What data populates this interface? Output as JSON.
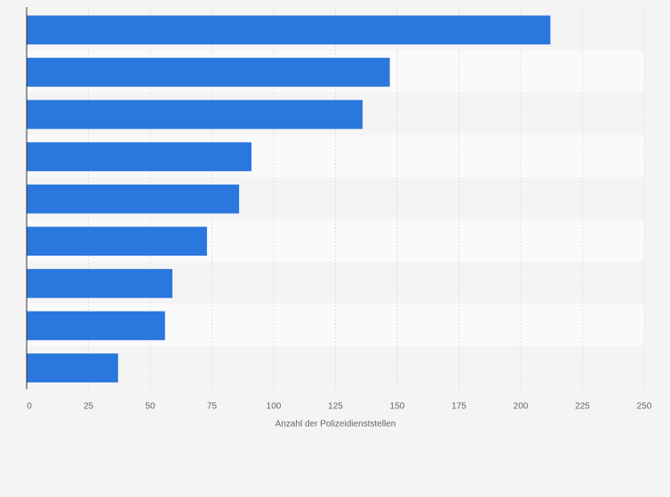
{
  "chart_data": {
    "type": "bar",
    "orientation": "horizontal",
    "title": "",
    "xlabel": "Anzahl der Polizeidienststellen",
    "ylabel": "",
    "xlim": [
      0,
      250
    ],
    "x_ticks": [
      0,
      25,
      50,
      75,
      100,
      125,
      150,
      175,
      200,
      225,
      250
    ],
    "categories": [
      "",
      "",
      "",
      "",
      "",
      "",
      "",
      "",
      ""
    ],
    "values": [
      212,
      147,
      136,
      91,
      86,
      73,
      59,
      56,
      37
    ],
    "grid": true,
    "bar_color": "#2a77dd",
    "band_colors": [
      "#f4f4f4",
      "#fafafa"
    ],
    "grid_color": "#dedede",
    "axis_color": "#333333"
  }
}
